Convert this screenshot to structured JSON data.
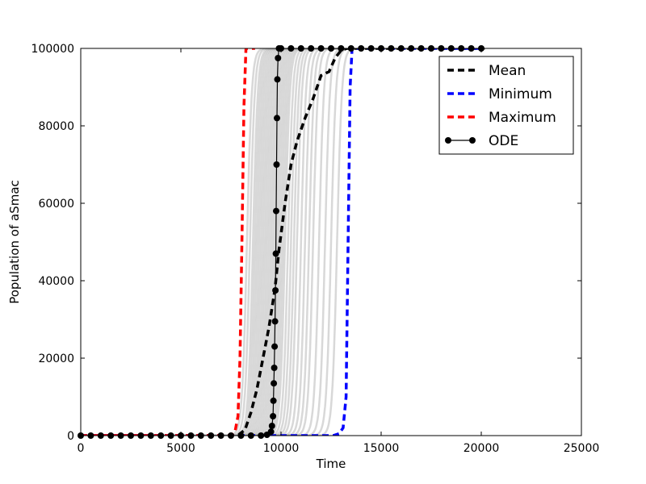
{
  "chart_data": {
    "type": "line",
    "title": "",
    "xlabel": "Time",
    "ylabel": "Population of aSmac",
    "xlim": [
      0,
      25000
    ],
    "ylim": [
      0,
      100000
    ],
    "x_ticks": [
      0,
      5000,
      10000,
      15000,
      20000,
      25000
    ],
    "x_tick_labels": [
      "0",
      "5000",
      "10000",
      "15000",
      "20000",
      "25000"
    ],
    "y_ticks": [
      0,
      20000,
      40000,
      60000,
      80000,
      100000
    ],
    "y_tick_labels": [
      "0",
      "20000",
      "40000",
      "60000",
      "80000",
      "100000"
    ],
    "grid": false,
    "legend_position": "top-right",
    "colors": {
      "mean": "#000000",
      "minimum": "#0000ff",
      "maximum": "#ff0000",
      "ode": "#000000",
      "trajectories": "#a9a9a9"
    },
    "trajectories": {
      "description_values_only": true,
      "midpoints": [
        8300,
        8450,
        8600,
        8700,
        8800,
        8900,
        9000,
        9100,
        9200,
        9300,
        9400,
        9500,
        9600,
        9700,
        9800,
        9900,
        10000,
        10100,
        10200,
        10350,
        10500,
        10650,
        10800,
        11000,
        11200,
        11400,
        11600,
        11900,
        12200,
        12500,
        12800
      ],
      "x_end": 20200
    },
    "series": [
      {
        "name": "Mean",
        "style": "dashed",
        "x": [
          0,
          7500,
          7900,
          8200,
          8500,
          8800,
          9100,
          9400,
          9700,
          9900,
          10200,
          10500,
          10800,
          11200,
          11600,
          12000,
          12400,
          12700,
          13000,
          13300,
          13600,
          20000
        ],
        "y": [
          0,
          0,
          300,
          1500,
          6000,
          12000,
          20000,
          28000,
          38000,
          48000,
          60000,
          70000,
          76000,
          82000,
          87000,
          93000,
          94000,
          97500,
          99500,
          100000,
          100000,
          100000
        ]
      },
      {
        "name": "Minimum",
        "style": "dashed",
        "x": [
          0,
          12600,
          12900,
          13100,
          13250,
          13350,
          13450,
          13550,
          13700,
          20000
        ],
        "y": [
          0,
          0,
          500,
          2000,
          10000,
          50000,
          90000,
          100000,
          100000,
          100000
        ]
      },
      {
        "name": "Maximum",
        "style": "dashed",
        "x": [
          0,
          7500,
          7700,
          7850,
          7950,
          8050,
          8150,
          8250,
          8400,
          8700
        ],
        "y": [
          0,
          0,
          1000,
          5000,
          20000,
          50000,
          85000,
          100000,
          100000,
          100000
        ]
      },
      {
        "name": "ODE",
        "style": "line-marker",
        "x": [
          0,
          500,
          1000,
          1500,
          2000,
          2500,
          3000,
          3500,
          4000,
          4500,
          5000,
          5500,
          6000,
          6500,
          7000,
          7500,
          8000,
          8500,
          9000,
          9300,
          9500,
          9550,
          9600,
          9620,
          9640,
          9660,
          9680,
          9700,
          9720,
          9740,
          9760,
          9780,
          9800,
          9820,
          9850,
          9900,
          10000,
          10500,
          11000,
          11500,
          12000,
          12500,
          13000,
          13500,
          14000,
          14500,
          15000,
          15500,
          16000,
          16500,
          17000,
          17500,
          18000,
          18500,
          19000,
          19500,
          20000
        ],
        "y": [
          0,
          0,
          0,
          0,
          0,
          0,
          0,
          0,
          0,
          0,
          0,
          0,
          0,
          0,
          0,
          0,
          0,
          0,
          0,
          200,
          1000,
          2500,
          5000,
          9000,
          13500,
          17500,
          23000,
          29500,
          37500,
          47000,
          58000,
          70000,
          82000,
          92000,
          97500,
          100000,
          100000,
          100000,
          100000,
          100000,
          100000,
          100000,
          100000,
          100000,
          100000,
          100000,
          100000,
          100000,
          100000,
          100000,
          100000,
          100000,
          100000,
          100000,
          100000,
          100000,
          100000
        ]
      }
    ]
  }
}
